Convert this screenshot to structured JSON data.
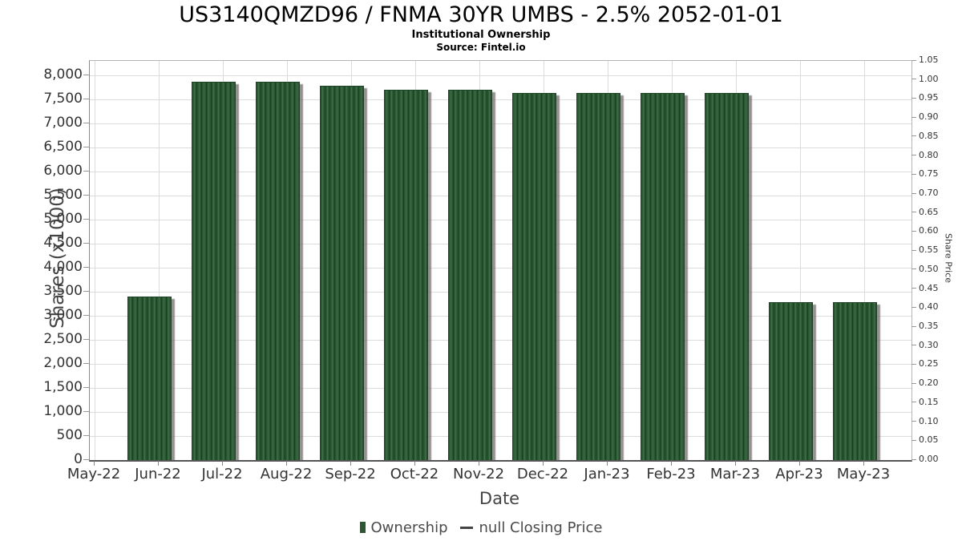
{
  "header": {
    "title": "US3140QMZD96 / FNMA 30YR UMBS - 2.5% 2052-01-01",
    "subtitle": "Institutional Ownership",
    "source": "Source: Fintel.io"
  },
  "chart_data": {
    "type": "bar",
    "title": "US3140QMZD96 / FNMA 30YR UMBS - 2.5% 2052-01-01",
    "subtitle": "Institutional Ownership",
    "source": "Source: Fintel.io",
    "categories": [
      "May-22",
      "Jun-22",
      "Jul-22",
      "Aug-22",
      "Sep-22",
      "Oct-22",
      "Nov-22",
      "Dec-22",
      "Jan-23",
      "Feb-23",
      "Mar-23",
      "Apr-23",
      "May-23"
    ],
    "series": [
      {
        "name": "Ownership",
        "type": "bar",
        "units": "shares (x1000)",
        "color": "#2c5834",
        "values": [
          null,
          3400,
          7870,
          7870,
          7790,
          7700,
          7700,
          7640,
          7640,
          7640,
          7640,
          3280,
          3280
        ]
      },
      {
        "name": "null Closing Price",
        "type": "line",
        "color": "#444444",
        "values": []
      }
    ],
    "xlabel": "Date",
    "ylabel": "Shares (x1000)",
    "ylabel_right": "Share Price",
    "y_left": {
      "min": 0,
      "tick_max": 8000,
      "step": 500,
      "axis_top": 8300,
      "tick_values": [
        0,
        500,
        1000,
        1500,
        2000,
        2500,
        3000,
        3500,
        4000,
        4500,
        5000,
        5500,
        6000,
        6500,
        7000,
        7500,
        8000
      ],
      "tick_labels": [
        "0",
        "500",
        "1,000",
        "1,500",
        "2,000",
        "2,500",
        "3,000",
        "3,500",
        "4,000",
        "4,500",
        "5,000",
        "5,500",
        "6,000",
        "6,500",
        "7,000",
        "7,500",
        "8,000"
      ]
    },
    "y_right": {
      "min": 0,
      "max": 1.05,
      "step": 0.05,
      "tick_values": [
        0,
        0.05,
        0.1,
        0.15,
        0.2,
        0.25,
        0.3,
        0.35,
        0.4,
        0.45,
        0.5,
        0.55,
        0.6,
        0.65,
        0.7,
        0.75,
        0.8,
        0.85,
        0.9,
        0.95,
        1.0,
        1.05
      ],
      "tick_labels": [
        "0.00",
        "0.05",
        "0.10",
        "0.15",
        "0.20",
        "0.25",
        "0.30",
        "0.35",
        "0.40",
        "0.45",
        "0.50",
        "0.55",
        "0.60",
        "0.65",
        "0.70",
        "0.75",
        "0.80",
        "0.85",
        "0.90",
        "0.95",
        "1.00",
        "1.05"
      ]
    },
    "grid": true,
    "legend_position": "bottom",
    "legend": [
      {
        "label": "Ownership",
        "marker": "square",
        "color": "#2b5733"
      },
      {
        "label": "null Closing Price",
        "marker": "line",
        "color": "#444444"
      }
    ]
  },
  "colors": {
    "bar_fill": "#2c5834",
    "bar_stripe_dark": "#1b3c21",
    "bar_stripe_light": "#41704b",
    "bar_shadow": "#8f8f8f",
    "grid": "#dcdcdc",
    "spine_dark": "#555555",
    "spine_light": "#b5b5b5",
    "tick_text": "#333333",
    "axis_title_text": "#444444",
    "legend_text": "#4a4a4a",
    "title_text": "#000000"
  }
}
